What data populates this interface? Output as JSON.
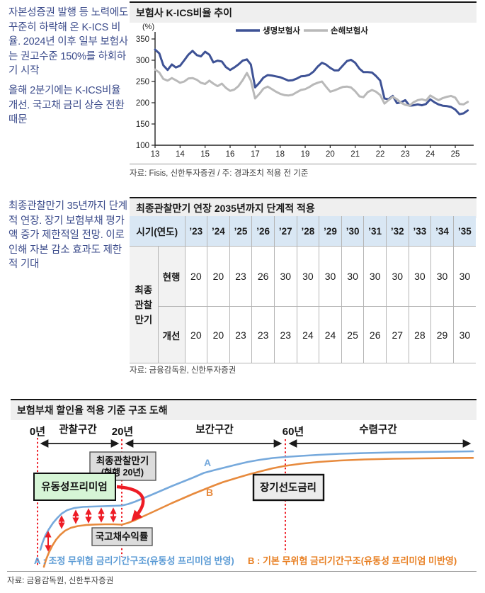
{
  "notes": {
    "note1": "자본성증권 발행 등 노력에도 꾸준히 하락해 온 K-ICS 비율. 2024년 이후 일부 보험사는 권고수준 150%를 하회하기 시작",
    "note2": "올해 2분기에는 K-ICS비율 개선. 국고채 금리 상승 전환 때문",
    "note3": "최종관찰만기 35년까지 단계적 연장. 장기 보험부채 평가액 증가 제한적일 전망. 이로 인해 자본 감소 효과도 제한적 기대"
  },
  "chart_section": {
    "title": "보험사 K-ICS비율 추이",
    "source": "자료: Fisis, 신한투자증권 / 주: 경과조치 적용 전 기준"
  },
  "chart_data": {
    "type": "line",
    "title": "보험사 K-ICS비율 추이",
    "ylabel": "(%)",
    "ylim": [
      100,
      350
    ],
    "y_ticks": [
      100,
      150,
      200,
      250,
      300,
      350
    ],
    "x_ticks": [
      13,
      14,
      15,
      16,
      17,
      18,
      19,
      20,
      21,
      22,
      23,
      24,
      25
    ],
    "legend_position": "top",
    "grid": false,
    "x": [
      13.0,
      13.17,
      13.33,
      13.5,
      13.67,
      13.83,
      14.0,
      14.17,
      14.33,
      14.5,
      14.67,
      14.83,
      15.0,
      15.17,
      15.33,
      15.5,
      15.67,
      15.83,
      16.0,
      16.17,
      16.33,
      16.5,
      16.67,
      16.83,
      17.0,
      17.17,
      17.33,
      17.5,
      17.67,
      17.83,
      18.0,
      18.17,
      18.33,
      18.5,
      18.67,
      18.83,
      19.0,
      19.17,
      19.33,
      19.5,
      19.67,
      19.83,
      20.0,
      20.17,
      20.33,
      20.5,
      20.67,
      20.83,
      21.0,
      21.17,
      21.33,
      21.5,
      21.67,
      21.83,
      22.0,
      22.17,
      22.33,
      22.5,
      22.67,
      22.83,
      23.0,
      23.17,
      23.33,
      23.5,
      23.67,
      23.83,
      24.0,
      24.17,
      24.33,
      24.5,
      24.67,
      24.83,
      25.0,
      25.17,
      25.33,
      25.5
    ],
    "series": [
      {
        "name": "생명보험사",
        "color": "#3e5295",
        "values": [
          325,
          316,
          288,
          277,
          290,
          283,
          287,
          300,
          313,
          322,
          312,
          309,
          320,
          313,
          295,
          299,
          297,
          284,
          277,
          283,
          290,
          299,
          302,
          290,
          236,
          247,
          259,
          265,
          264,
          262,
          260,
          256,
          252,
          253,
          257,
          262,
          263,
          266,
          273,
          285,
          294,
          290,
          282,
          276,
          276,
          287,
          298,
          301,
          294,
          280,
          272,
          272,
          271,
          263,
          252,
          210,
          208,
          216,
          199,
          201,
          206,
          193,
          194,
          196,
          194,
          197,
          208,
          201,
          196,
          193,
          192,
          190,
          184,
          173,
          175,
          182
        ]
      },
      {
        "name": "손해보험사",
        "color": "#b9b9b9",
        "values": [
          278,
          271,
          256,
          252,
          258,
          253,
          247,
          250,
          257,
          258,
          254,
          247,
          244,
          252,
          245,
          239,
          245,
          235,
          228,
          231,
          239,
          253,
          270,
          252,
          210,
          221,
          233,
          238,
          232,
          226,
          221,
          218,
          217,
          219,
          225,
          230,
          232,
          237,
          243,
          247,
          250,
          238,
          226,
          229,
          233,
          237,
          238,
          236,
          227,
          215,
          213,
          225,
          230,
          226,
          218,
          198,
          206,
          214,
          208,
          200,
          195,
          193,
          201,
          206,
          208,
          205,
          217,
          211,
          206,
          211,
          214,
          216,
          212,
          197,
          196,
          202
        ]
      }
    ]
  },
  "table_section": {
    "title": "최종관찰만기 연장 2035년까지 단계적 적용",
    "header_label": "시기(연도)",
    "years": [
      "’23",
      "’24",
      "’25",
      "’26",
      "’27",
      "’28",
      "’29",
      "’30",
      "’31",
      "’32",
      "’33",
      "’34",
      "’35"
    ],
    "row_group_lines": [
      "최종",
      "관찰",
      "만기"
    ],
    "rows": [
      {
        "label": "현행",
        "values": [
          20,
          20,
          23,
          26,
          30,
          30,
          30,
          30,
          30,
          30,
          30,
          30,
          30
        ]
      },
      {
        "label": "개선",
        "values": [
          20,
          20,
          23,
          23,
          23,
          24,
          24,
          25,
          26,
          27,
          28,
          29,
          30
        ]
      }
    ],
    "source": "자료: 금융감독원, 신한투자증권"
  },
  "diagram_section": {
    "title": "보험부채 할인율 적용 기준 구조 도해",
    "year_labels": {
      "y0": "0년",
      "y20": "20년",
      "y60": "60년"
    },
    "zone_labels": {
      "observe": "관찰구간",
      "interpolate": "보간구간",
      "converge": "수렴구간"
    },
    "boxes": {
      "maturity_line1": "최종관찰만기",
      "maturity_line2": "(현행 20년)",
      "liquidity": "유동성프리미엄",
      "ltfr": "장기선도금리",
      "ktb": "국고채수익률"
    },
    "curve_a_label": "A",
    "curve_b_label": "B",
    "legend_a": "A : 조정 무위험 금리기간구조(유동성 프리미엄 반영)",
    "legend_b": "B : 기본 무위험 금리기간구조(유동성 프리미엄 미반영)",
    "source": "자료: 금융감독원, 신한투자증권"
  },
  "colors": {
    "note_text": "#3b4b8b",
    "line_life": "#3e5295",
    "line_nonlife": "#b9b9b9",
    "titlebar_bg": "#efefef",
    "titlebar_border": "#161616",
    "table_header_bg": "#d9e7f4",
    "table_label_bg": "#f2f2f2",
    "red": "#ee1c25",
    "curve_a": "#76a9dc",
    "curve_b": "#e78a3d",
    "legend_a_text": "#5b9bd5",
    "legend_b_text": "#e87f22",
    "green_box_bg": "#d6f5d6",
    "gray_box_bg": "#dcdcdc"
  }
}
